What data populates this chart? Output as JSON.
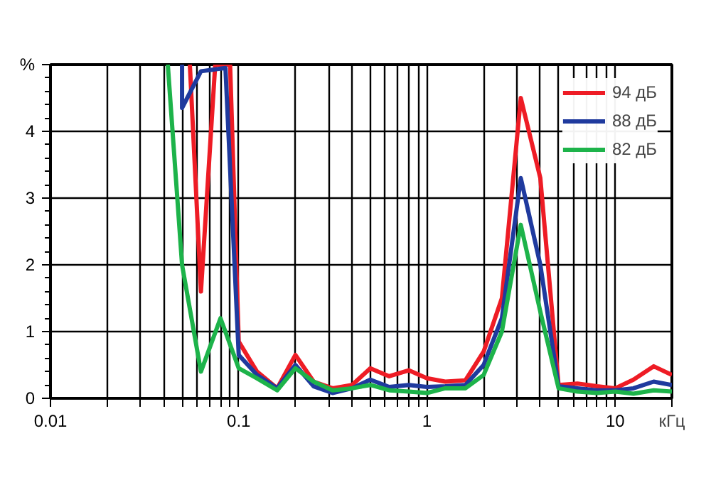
{
  "chart_data": {
    "type": "line",
    "xlabel": "кГц",
    "log": "x",
    "grid": true,
    "legend": "top right",
    "xlim": [
      0.01,
      20
    ],
    "ylim": [
      0,
      5
    ],
    "xticks": [
      0.01,
      {
        "value": 0.02,
        "label": null
      },
      {
        "value": 0.03,
        "label": null
      },
      {
        "value": 0.04,
        "label": null
      },
      {
        "value": 0.05,
        "label": null
      },
      {
        "value": 0.06,
        "label": null
      },
      {
        "value": 0.07,
        "label": null
      },
      {
        "value": 0.08,
        "label": null
      },
      {
        "value": 0.09,
        "label": null
      },
      0.1,
      {
        "value": 0.2,
        "label": null
      },
      {
        "value": 0.3,
        "label": null
      },
      {
        "value": 0.4,
        "label": null
      },
      {
        "value": 0.5,
        "label": null
      },
      {
        "value": 0.6,
        "label": null
      },
      {
        "value": 0.7,
        "label": null
      },
      {
        "value": 0.8,
        "label": null
      },
      {
        "value": 0.9,
        "label": null
      },
      1,
      {
        "value": 2,
        "label": null
      },
      {
        "value": 3,
        "label": null
      },
      {
        "value": 4,
        "label": null
      },
      {
        "value": 5,
        "label": null
      },
      {
        "value": 6,
        "label": null
      },
      {
        "value": 7,
        "label": null
      },
      {
        "value": 8,
        "label": null
      },
      {
        "value": 9,
        "label": null
      },
      10,
      {
        "value": 20,
        "label": null
      }
    ],
    "yticks": [
      0,
      1,
      2,
      3,
      4,
      {
        "value": 5,
        "label": "%"
      }
    ],
    "series": [
      {
        "name": "94 дБ",
        "color": "#ee1c25",
        "x": [
          0.055,
          0.063,
          0.075,
          0.09,
          0.1,
          0.125,
          0.16,
          0.2,
          0.25,
          0.315,
          0.4,
          0.5,
          0.63,
          0.8,
          1,
          1.25,
          1.6,
          2,
          2.5,
          3.15,
          4,
          5,
          6.3,
          8,
          10,
          12.5,
          16,
          20
        ],
        "values": [
          5,
          1.6,
          5,
          5,
          0.85,
          0.4,
          0.15,
          0.65,
          0.25,
          0.15,
          0.2,
          0.45,
          0.33,
          0.42,
          0.3,
          0.25,
          0.27,
          0.7,
          1.5,
          4.5,
          3.3,
          0.2,
          0.22,
          0.18,
          0.15,
          0.28,
          0.48,
          0.35
        ]
      },
      {
        "name": "88 дБ",
        "color": "#1f3a9e",
        "x": [
          0.05,
          0.05,
          0.063,
          0.085,
          0.1,
          0.125,
          0.16,
          0.2,
          0.25,
          0.315,
          0.4,
          0.5,
          0.63,
          0.8,
          1,
          1.25,
          1.6,
          2,
          2.5,
          3.15,
          4,
          5,
          6.3,
          8,
          10,
          12.5,
          16,
          20
        ],
        "values": [
          5,
          4.35,
          4.9,
          4.95,
          0.65,
          0.35,
          0.15,
          0.5,
          0.18,
          0.08,
          0.15,
          0.28,
          0.17,
          0.2,
          0.17,
          0.18,
          0.2,
          0.5,
          1.2,
          3.3,
          2.0,
          0.18,
          0.15,
          0.12,
          0.12,
          0.15,
          0.25,
          0.2
        ]
      },
      {
        "name": "82 дБ",
        "color": "#1db34a",
        "x": [
          0.042,
          0.05,
          0.063,
          0.08,
          0.1,
          0.125,
          0.16,
          0.2,
          0.25,
          0.315,
          0.4,
          0.5,
          0.63,
          0.8,
          1,
          1.25,
          1.6,
          2,
          2.5,
          3.15,
          4,
          5,
          6.3,
          8,
          10,
          12.5,
          16,
          20
        ],
        "values": [
          5,
          2.0,
          0.4,
          1.2,
          0.45,
          0.3,
          0.12,
          0.45,
          0.25,
          0.12,
          0.15,
          0.2,
          0.12,
          0.1,
          0.08,
          0.15,
          0.15,
          0.35,
          1.0,
          2.6,
          1.3,
          0.15,
          0.1,
          0.08,
          0.1,
          0.07,
          0.12,
          0.1
        ]
      }
    ]
  }
}
